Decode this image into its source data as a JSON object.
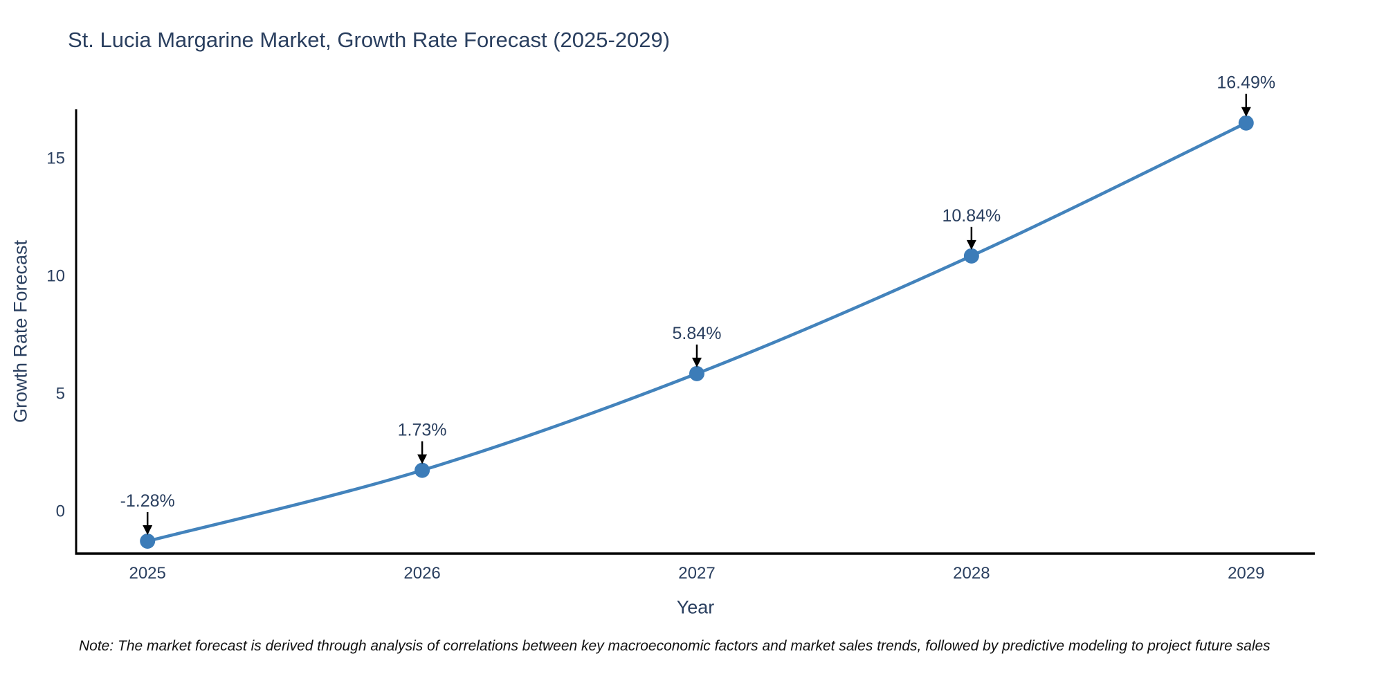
{
  "title": "St. Lucia Margarine Market, Growth Rate Forecast (2025-2029)",
  "note": "Note: The market forecast is derived through analysis of correlations between key macroeconomic factors and market sales trends, followed by predictive modeling to project future sales",
  "chart_data": {
    "type": "line",
    "title": "St. Lucia Margarine Market, Growth Rate Forecast (2025-2029)",
    "xlabel": "Year",
    "ylabel": "Growth Rate Forecast",
    "x": [
      2025,
      2026,
      2027,
      2028,
      2029
    ],
    "values": [
      -1.28,
      1.73,
      5.84,
      10.84,
      16.49
    ],
    "point_labels": [
      "-1.28%",
      "1.73%",
      "5.84%",
      "10.84%",
      "16.49%"
    ],
    "xticks": [
      "2025",
      "2026",
      "2027",
      "2028",
      "2029"
    ],
    "yticks": [
      0,
      5,
      10,
      15
    ],
    "xlim": [
      2024.74,
      2029.25
    ],
    "ylim": [
      -1.81,
      17.07
    ],
    "line_shape": "spline",
    "grid": false,
    "legend": "none",
    "colors": {
      "line": "#4383bc",
      "marker": "#3c7cb8",
      "axis": "#000000",
      "text": "#2a3f5f",
      "annotation_text": "#2a3f5f",
      "annotation_arrow": "#000000",
      "background": "#ffffff"
    }
  }
}
